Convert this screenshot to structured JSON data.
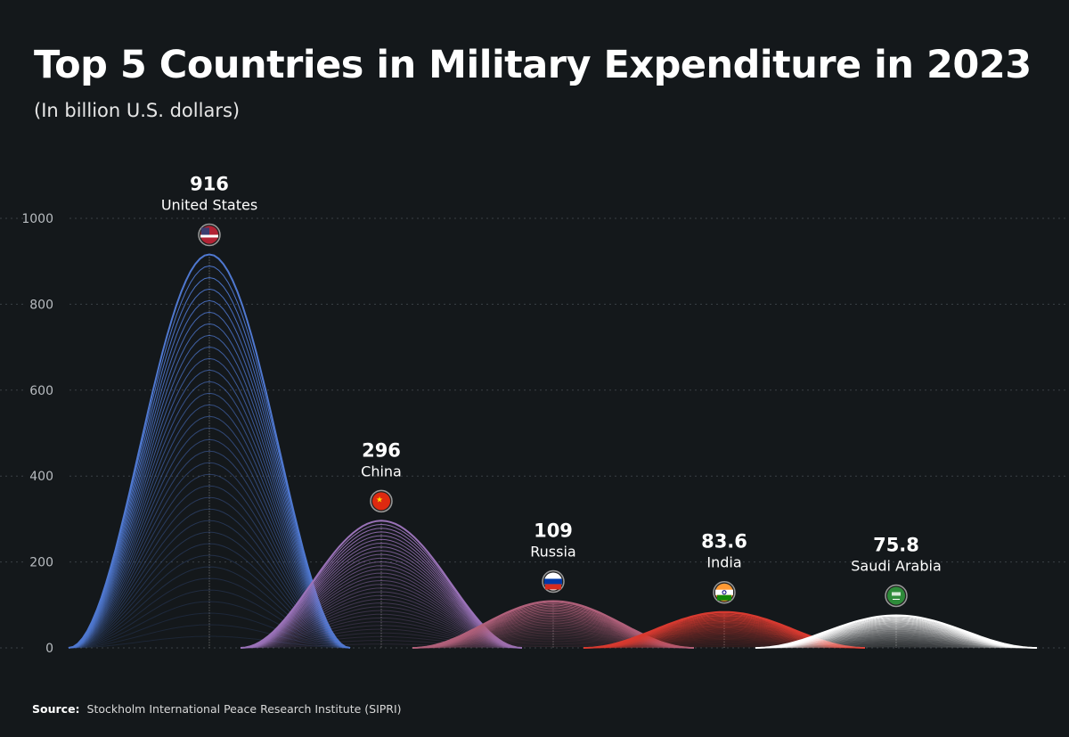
{
  "title": "Top 5 Countries in Military Expenditure in 2023",
  "subtitle": "(In billion U.S. dollars)",
  "source_label": "Source:",
  "source_text": "Stockholm International Peace Research Institute (SIPRI)",
  "chart_data": {
    "type": "area",
    "ylim": [
      0,
      1000
    ],
    "yticks": [
      0,
      200,
      400,
      600,
      800,
      1000
    ],
    "grid": true,
    "categories": [
      "United States",
      "China",
      "Russia",
      "India",
      "Saudi Arabia"
    ],
    "values": [
      916,
      296,
      109,
      83.6,
      75.8
    ],
    "value_labels": [
      "916",
      "296",
      "109",
      "83.6",
      "75.8"
    ],
    "colors": [
      "#4f78d0",
      "#9a72b8",
      "#b0607a",
      "#d83a30",
      "#ffffff"
    ],
    "flags": [
      "us-flag-icon",
      "china-flag-icon",
      "russia-flag-icon",
      "india-flag-icon",
      "saudi-arabia-flag-icon"
    ]
  }
}
